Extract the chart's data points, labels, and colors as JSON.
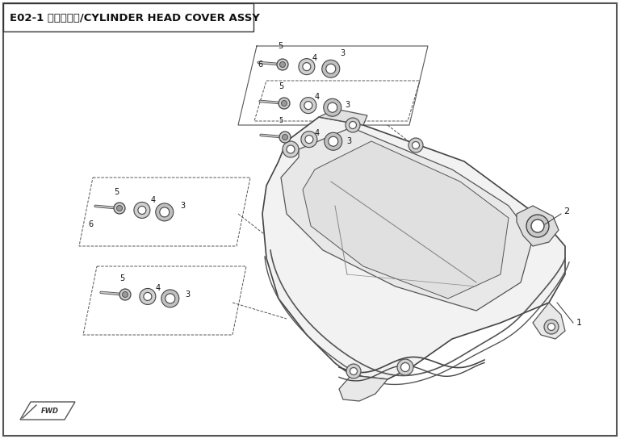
{
  "title": "E02-1 气缸盖罩组/CYLINDER HEAD COVER ASSY",
  "bg_color": "#ffffff",
  "fig_width": 7.68,
  "fig_height": 5.44,
  "dpi": 100,
  "title_fontsize": 9.5,
  "label_fontsize": 7,
  "line_color": "#333333",
  "light_gray": "#cccccc",
  "mid_gray": "#888888",
  "dark_gray": "#444444"
}
